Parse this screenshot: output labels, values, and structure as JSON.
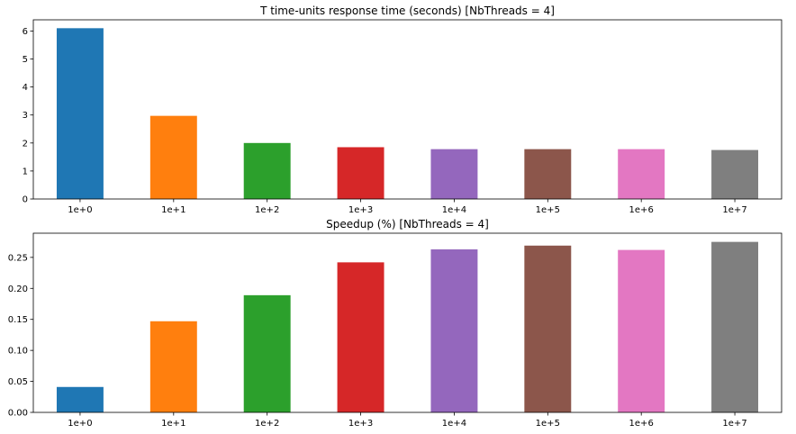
{
  "chart_data": [
    {
      "type": "bar",
      "title": "T time-units response time (seconds) [NbThreads = 4]",
      "xlabel": "",
      "ylabel": "",
      "categories": [
        "1e+0",
        "1e+1",
        "1e+2",
        "1e+3",
        "1e+4",
        "1e+5",
        "1e+6",
        "1e+7"
      ],
      "values": [
        6.1,
        2.97,
        2.0,
        1.85,
        1.78,
        1.78,
        1.78,
        1.75
      ],
      "ylim": [
        0,
        6.4
      ],
      "yticks": [
        0,
        1,
        2,
        3,
        4,
        5,
        6
      ],
      "ytick_labels": [
        "0",
        "1",
        "2",
        "3",
        "4",
        "5",
        "6"
      ],
      "grid": false,
      "colors": [
        "#1f77b4",
        "#ff7f0e",
        "#2ca02c",
        "#d62728",
        "#9467bd",
        "#8c564b",
        "#e377c2",
        "#7f7f7f"
      ]
    },
    {
      "type": "bar",
      "title": "Speedup (%) [NbThreads = 4]",
      "xlabel": "",
      "ylabel": "",
      "categories": [
        "1e+0",
        "1e+1",
        "1e+2",
        "1e+3",
        "1e+4",
        "1e+5",
        "1e+6",
        "1e+7"
      ],
      "values": [
        0.041,
        0.147,
        0.189,
        0.242,
        0.263,
        0.269,
        0.262,
        0.275
      ],
      "ylim": [
        0,
        0.289
      ],
      "yticks": [
        0,
        0.05,
        0.1,
        0.15,
        0.2,
        0.25
      ],
      "ytick_labels": [
        "0.00",
        "0.05",
        "0.10",
        "0.15",
        "0.20",
        "0.25"
      ],
      "grid": false,
      "colors": [
        "#1f77b4",
        "#ff7f0e",
        "#2ca02c",
        "#d62728",
        "#9467bd",
        "#8c564b",
        "#e377c2",
        "#7f7f7f"
      ]
    }
  ]
}
